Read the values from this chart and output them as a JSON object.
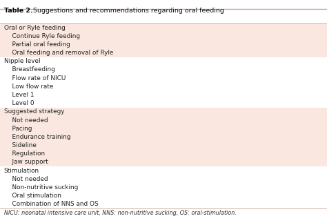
{
  "title_bold": "Table 2.",
  "title_normal": " Suggestions and recommendations regarding oral feeding",
  "footer": "NICU: neonatal intensive care unit, NNS: non-nutritive sucking, OS: oral-stimulation.",
  "rows": [
    {
      "text": "Oral or Ryle feeding",
      "indent": false,
      "bg": "#fae8e0"
    },
    {
      "text": "    Continue Ryle feeding",
      "indent": true,
      "bg": "#fae8e0"
    },
    {
      "text": "    Partial oral feeding",
      "indent": true,
      "bg": "#fae8e0"
    },
    {
      "text": "    Oral feeding and removal of Ryle",
      "indent": true,
      "bg": "#fae8e0"
    },
    {
      "text": "Nipple level",
      "indent": false,
      "bg": "#ffffff"
    },
    {
      "text": "    Breastfeeding",
      "indent": true,
      "bg": "#ffffff"
    },
    {
      "text": "    Flow rate of NICU",
      "indent": true,
      "bg": "#ffffff"
    },
    {
      "text": "    Low flow rate",
      "indent": true,
      "bg": "#ffffff"
    },
    {
      "text": "    Level 1",
      "indent": true,
      "bg": "#ffffff"
    },
    {
      "text": "    Level 0",
      "indent": true,
      "bg": "#ffffff"
    },
    {
      "text": "Suggested strategy",
      "indent": false,
      "bg": "#fae8e0"
    },
    {
      "text": "    Not needed",
      "indent": true,
      "bg": "#fae8e0"
    },
    {
      "text": "    Pacing",
      "indent": true,
      "bg": "#fae8e0"
    },
    {
      "text": "    Endurance training",
      "indent": true,
      "bg": "#fae8e0"
    },
    {
      "text": "    Sideline",
      "indent": true,
      "bg": "#fae8e0"
    },
    {
      "text": "    Regulation",
      "indent": true,
      "bg": "#fae8e0"
    },
    {
      "text": "    Jaw support",
      "indent": true,
      "bg": "#fae8e0"
    },
    {
      "text": "Stimulation",
      "indent": false,
      "bg": "#ffffff"
    },
    {
      "text": "    Not needed",
      "indent": true,
      "bg": "#ffffff"
    },
    {
      "text": "    Non-nutritive sucking",
      "indent": true,
      "bg": "#ffffff"
    },
    {
      "text": "    Oral stimulation",
      "indent": true,
      "bg": "#ffffff"
    },
    {
      "text": "    Combination of NNS and OS",
      "indent": true,
      "bg": "#ffffff"
    }
  ],
  "line_color": "#c8a898",
  "title_font_size": 6.8,
  "row_font_size": 6.4,
  "footer_font_size": 5.8,
  "figsize": [
    4.74,
    3.23
  ],
  "dpi": 100
}
